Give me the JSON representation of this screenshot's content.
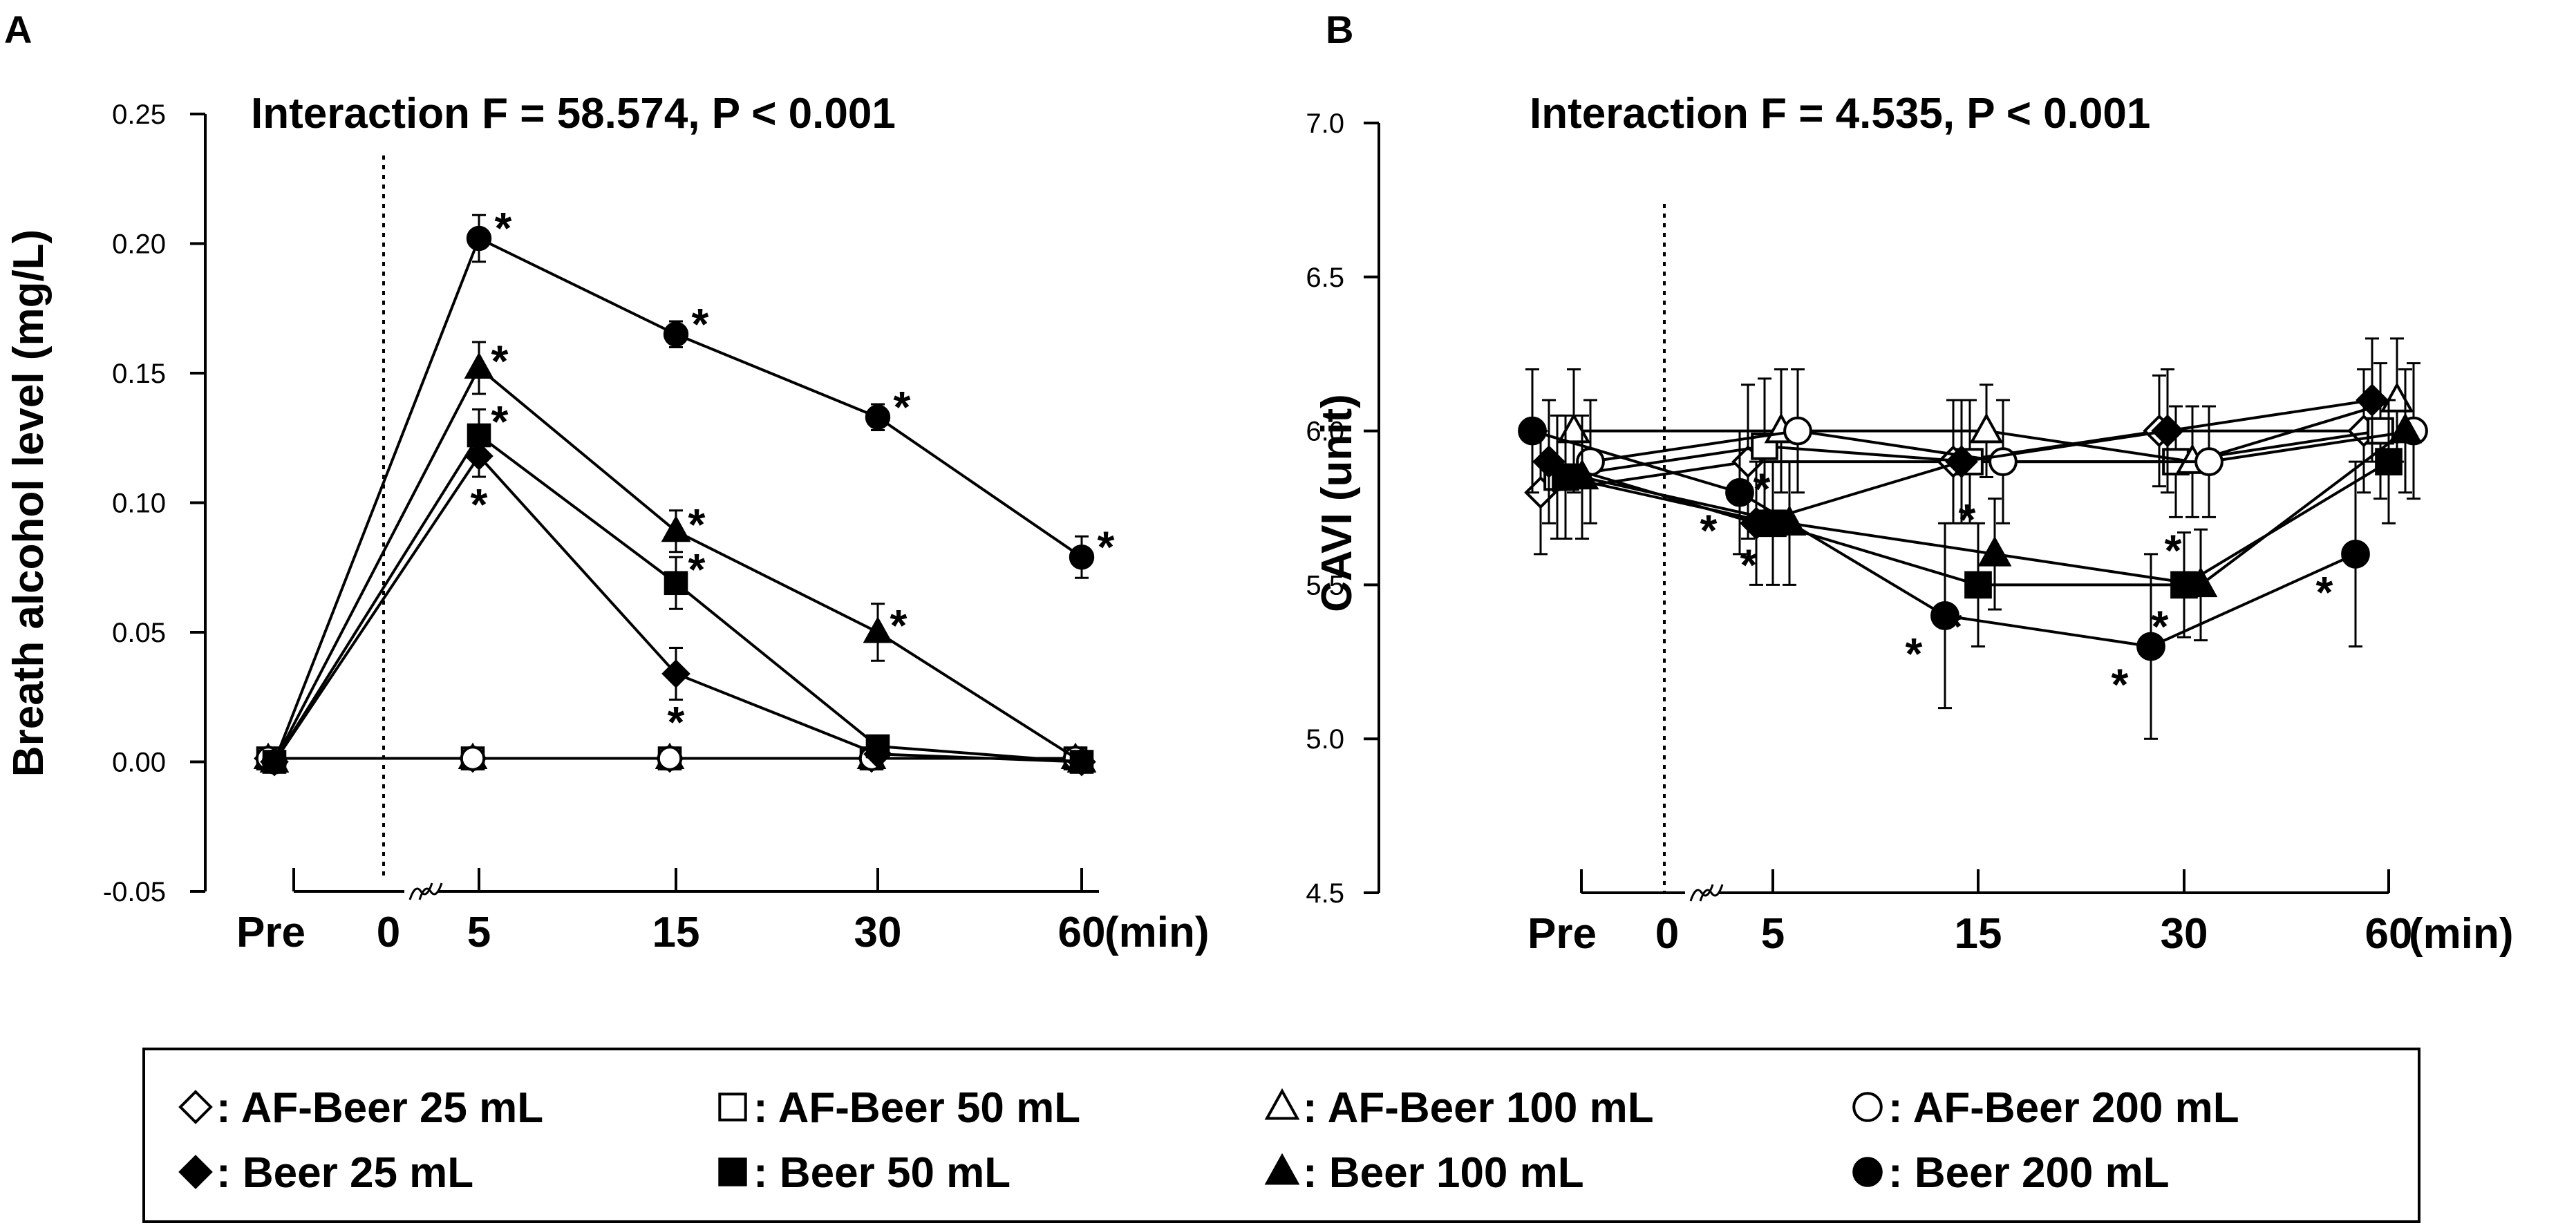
{
  "chart_data": [
    {
      "panel": "A",
      "type": "line",
      "title": "Interaction F = 58.574, P < 0.001",
      "ylabel": "Breath alcohol level (mg/L)",
      "xlabel": "(min)",
      "categories": [
        "Pre",
        "5",
        "15",
        "30",
        "60"
      ],
      "zero_tick": "0",
      "ylim": [
        -0.05,
        0.25
      ],
      "yticks": [
        "-0.05",
        "0.00",
        "0.05",
        "0.10",
        "0.15",
        "0.20",
        "0.25"
      ],
      "series": [
        {
          "name": "AF-Beer 25 mL",
          "marker": "diamond-open",
          "values": [
            0,
            0,
            0,
            0,
            0
          ],
          "err": [
            0,
            0,
            0,
            0,
            0
          ],
          "sig": [
            false,
            false,
            false,
            false,
            false
          ]
        },
        {
          "name": "AF-Beer 50 mL",
          "marker": "square-open",
          "values": [
            0,
            0,
            0,
            0,
            0
          ],
          "err": [
            0,
            0,
            0,
            0,
            0
          ],
          "sig": [
            false,
            false,
            false,
            false,
            false
          ]
        },
        {
          "name": "AF-Beer 100 mL",
          "marker": "triangle-open",
          "values": [
            0,
            0,
            0,
            0,
            0
          ],
          "err": [
            0,
            0,
            0,
            0,
            0
          ],
          "sig": [
            false,
            false,
            false,
            false,
            false
          ]
        },
        {
          "name": "AF-Beer 200 mL",
          "marker": "circle-open",
          "values": [
            0,
            0,
            0,
            0,
            0
          ],
          "err": [
            0,
            0,
            0,
            0,
            0
          ],
          "sig": [
            false,
            false,
            false,
            false,
            false
          ]
        },
        {
          "name": "Beer 25 mL",
          "marker": "diamond-filled",
          "values": [
            0,
            0.118,
            0.034,
            0.003,
            0
          ],
          "err": [
            0,
            0.008,
            0.01,
            0.002,
            0
          ],
          "sig": [
            false,
            true,
            true,
            false,
            false
          ]
        },
        {
          "name": "Beer 50 mL",
          "marker": "square-filled",
          "values": [
            0,
            0.126,
            0.069,
            0.006,
            0
          ],
          "err": [
            0,
            0.01,
            0.01,
            0.003,
            0
          ],
          "sig": [
            false,
            true,
            true,
            false,
            false
          ]
        },
        {
          "name": "Beer 100 mL",
          "marker": "triangle-filled",
          "values": [
            0,
            0.152,
            0.089,
            0.05,
            0
          ],
          "err": [
            0,
            0.01,
            0.008,
            0.011,
            0
          ],
          "sig": [
            false,
            true,
            true,
            true,
            false
          ]
        },
        {
          "name": "Beer 200 mL",
          "marker": "circle-filled",
          "values": [
            0,
            0.202,
            0.165,
            0.133,
            0.079
          ],
          "err": [
            0,
            0.009,
            0.005,
            0.005,
            0.008
          ],
          "sig": [
            false,
            true,
            true,
            true,
            true
          ]
        }
      ]
    },
    {
      "panel": "B",
      "type": "line",
      "title": "Interaction F = 4.535, P < 0.001",
      "ylabel": "CAVI (unit)",
      "xlabel": "(min)",
      "categories": [
        "Pre",
        "5",
        "15",
        "30",
        "60"
      ],
      "zero_tick": "0",
      "ylim": [
        4.5,
        7.0
      ],
      "yticks": [
        "4.5",
        "5.0",
        "5.5",
        "6.0",
        "6.5",
        "7.0"
      ],
      "series": [
        {
          "name": "AF-Beer 25 mL",
          "marker": "diamond-open",
          "values": [
            5.8,
            5.9,
            5.9,
            6.0,
            6.0
          ],
          "err": [
            0.2,
            0.25,
            0.2,
            0.18,
            0.2
          ],
          "sig": [
            false,
            false,
            false,
            false,
            false
          ]
        },
        {
          "name": "AF-Beer 50 mL",
          "marker": "square-open",
          "values": [
            5.85,
            5.95,
            5.9,
            5.9,
            6.0
          ],
          "err": [
            0.2,
            0.22,
            0.2,
            0.18,
            0.22
          ],
          "sig": [
            false,
            false,
            false,
            false,
            false
          ]
        },
        {
          "name": "AF-Beer 100 mL",
          "marker": "triangle-open",
          "values": [
            6.0,
            6.0,
            6.0,
            5.9,
            6.1
          ],
          "err": [
            0.2,
            0.2,
            0.15,
            0.18,
            0.2
          ],
          "sig": [
            false,
            false,
            false,
            false,
            false
          ]
        },
        {
          "name": "AF-Beer 200 mL",
          "marker": "circle-open",
          "values": [
            5.9,
            6.0,
            5.9,
            5.9,
            6.0
          ],
          "err": [
            0.2,
            0.2,
            0.2,
            0.18,
            0.22
          ],
          "sig": [
            false,
            false,
            false,
            false,
            false
          ]
        },
        {
          "name": "Beer 25 mL",
          "marker": "diamond-filled",
          "values": [
            5.9,
            5.7,
            5.9,
            6.0,
            6.1
          ],
          "err": [
            0.2,
            0.2,
            0.2,
            0.2,
            0.2
          ],
          "sig": [
            false,
            false,
            false,
            false,
            false
          ]
        },
        {
          "name": "Beer 50 mL",
          "marker": "square-filled",
          "values": [
            5.85,
            5.7,
            5.5,
            5.5,
            5.9
          ],
          "err": [
            0.2,
            0.2,
            0.2,
            0.17,
            0.2
          ],
          "sig": [
            false,
            true,
            true,
            true,
            false
          ]
        },
        {
          "name": "Beer 100 mL",
          "marker": "triangle-filled",
          "values": [
            5.85,
            5.7,
            5.6,
            5.5,
            6.0
          ],
          "err": [
            0.2,
            0.2,
            0.18,
            0.18,
            0.2
          ],
          "sig": [
            false,
            true,
            true,
            true,
            false
          ]
        },
        {
          "name": "Beer 200 mL",
          "marker": "circle-filled",
          "values": [
            6.0,
            5.8,
            5.4,
            5.3,
            5.6
          ],
          "err": [
            0.2,
            0.2,
            0.3,
            0.3,
            0.3
          ],
          "sig": [
            false,
            true,
            true,
            true,
            true
          ]
        }
      ]
    }
  ],
  "panel_labels": [
    "A",
    "B"
  ],
  "significance_marker": "*",
  "legend": [
    {
      "marker": "diamond-open",
      "label": ": AF-Beer 25 mL"
    },
    {
      "marker": "square-open",
      "label": ": AF-Beer 50 mL"
    },
    {
      "marker": "triangle-open",
      "label": ": AF-Beer 100 mL"
    },
    {
      "marker": "circle-open",
      "label": ": AF-Beer 200 mL"
    },
    {
      "marker": "diamond-filled",
      "label": ": Beer 25 mL"
    },
    {
      "marker": "square-filled",
      "label": ": Beer 50 mL"
    },
    {
      "marker": "triangle-filled",
      "label": ": Beer 100 mL"
    },
    {
      "marker": "circle-filled",
      "label": ": Beer 200 mL"
    }
  ],
  "colors": {
    "ink": "#000000",
    "background": "#ffffff"
  }
}
